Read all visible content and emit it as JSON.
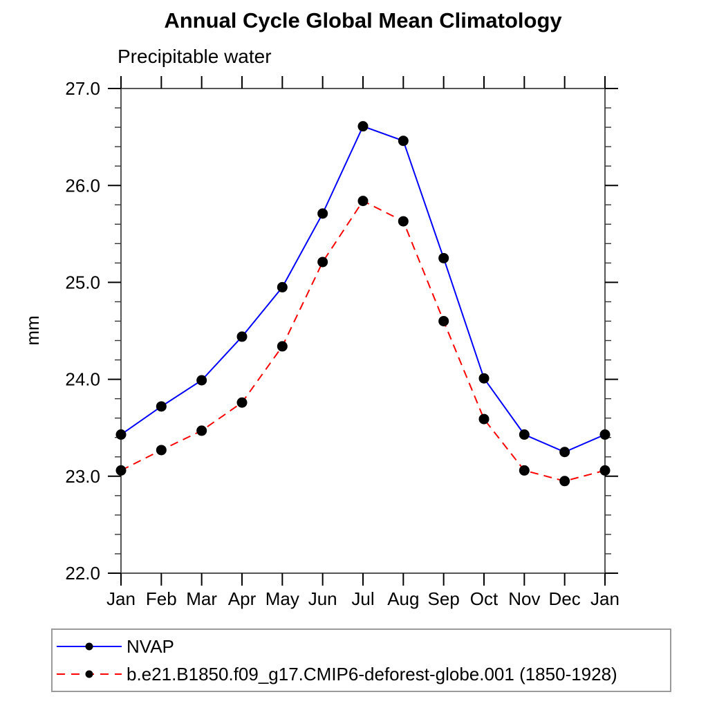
{
  "header": {
    "title": "Annual Cycle Global Mean Climatology",
    "subtitle": "Precipitable water"
  },
  "chart_data": {
    "type": "line",
    "title": "Annual Cycle Global Mean Climatology",
    "subtitle": "Precipitable water",
    "xlabel": "",
    "ylabel": "mm",
    "categories": [
      "Jan",
      "Feb",
      "Mar",
      "Apr",
      "May",
      "Jun",
      "Jul",
      "Aug",
      "Sep",
      "Oct",
      "Nov",
      "Dec",
      "Jan"
    ],
    "y_tick_labels": [
      "27.0",
      "26.0",
      "25.0",
      "24.0",
      "23.0",
      "22.0"
    ],
    "ylim": [
      22.0,
      27.0
    ],
    "y_major_step": 1.0,
    "y_minor_step": 0.2,
    "grid": false,
    "legend_position": "bottom",
    "axis_color": "#555555",
    "tick_color": "#000000",
    "marker_color": "#000000",
    "series": [
      {
        "name": "NVAP",
        "color": "#0000ff",
        "style": "solid",
        "marker": "circle",
        "values": [
          23.43,
          23.72,
          23.99,
          24.44,
          24.95,
          25.71,
          26.61,
          26.46,
          25.25,
          24.01,
          23.43,
          23.25,
          23.43
        ]
      },
      {
        "name": "b.e21.B1850.f09_g17.CMIP6-deforest-globe.001 (1850-1928)",
        "color": "#ff0000",
        "style": "dashed",
        "marker": "circle",
        "values": [
          23.06,
          23.27,
          23.47,
          23.76,
          24.34,
          25.21,
          25.84,
          25.63,
          24.6,
          23.59,
          23.06,
          22.95,
          23.06
        ]
      }
    ]
  }
}
